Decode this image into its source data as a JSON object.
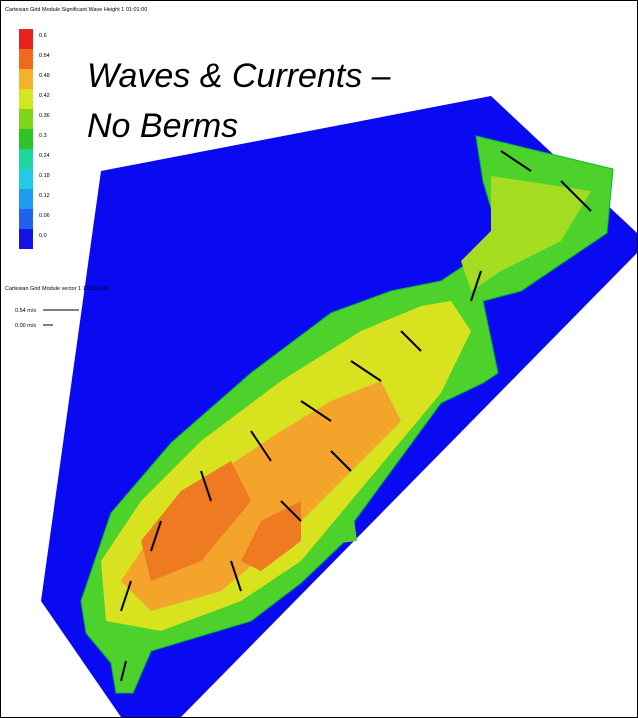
{
  "header": {
    "title": "Waves & Currents – No Berms"
  },
  "legend": {
    "title": "Cartesian Grid Module Significant Wave Height 1 01:01:00",
    "entries": [
      {
        "label": "0.6",
        "color": "#e8221a"
      },
      {
        "label": "0.54",
        "color": "#f06a1e"
      },
      {
        "label": "0.48",
        "color": "#f4b22a"
      },
      {
        "label": "0.42",
        "color": "#d4e61e"
      },
      {
        "label": "0.36",
        "color": "#7cd61a"
      },
      {
        "label": "0.3",
        "color": "#2ec42a"
      },
      {
        "label": "0.24",
        "color": "#1ed6a0"
      },
      {
        "label": "0.18",
        "color": "#22cce6"
      },
      {
        "label": "0.12",
        "color": "#1e9cee"
      },
      {
        "label": "0.06",
        "color": "#1e62ee"
      },
      {
        "label": "0.0",
        "color": "#1414e6"
      }
    ]
  },
  "vector_legend": {
    "title": "Cartesian Grid Module vector 1 1 01:01:00",
    "entries": [
      "0.54 m/s",
      "0.00 m/s"
    ]
  }
}
